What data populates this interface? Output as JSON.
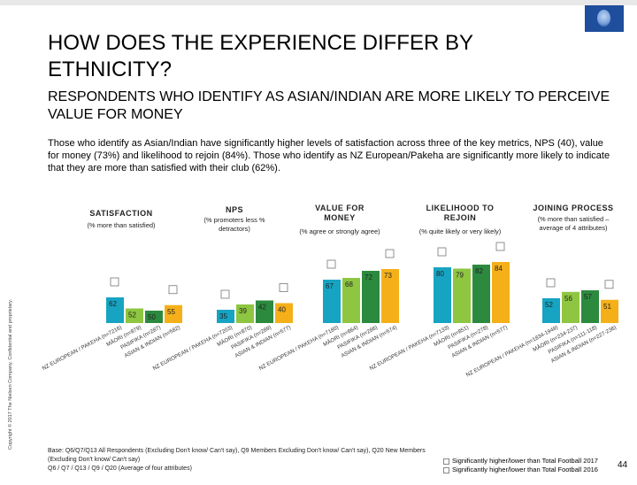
{
  "title": "HOW DOES THE EXPERIENCE DIFFER BY ETHNICITY?",
  "subtitle": "RESPONDENTS WHO IDENTIFY AS ASIAN/INDIAN ARE MORE LIKELY TO PERCEIVE VALUE FOR MONEY",
  "body": "Those who identify as Asian/Indian have significantly higher levels of satisfaction across three of the key metrics, NPS (40), value for money (73%) and likelihood to rejoin (84%). Those who identify as NZ European/Pakeha are significantly more likely to indicate that they are more than satisfied with their club (62%).",
  "copyright": "Copyright © 2017 The Nielsen Company. Confidential and proprietary.",
  "footnote_lines": [
    "Base: Q6/Q7/Q13 All Respondents (Excluding Don't know/ Can't say), Q9 Members Excluding Don't know/ Can't say), Q20 New Members",
    "(Excluding Don't know/ Can't say)",
    "Q6 / Q7 / Q13 / Q9 / Q20 (Average of four attributes)"
  ],
  "legend": {
    "higher_2017": "Significantly higher/lower than Total Football 2017",
    "higher_2016": "Significantly higher/lower than Total Football 2016"
  },
  "page_number": "44",
  "colors": {
    "nz_european": "#16a4c2",
    "maori": "#8ec641",
    "pasifika": "#2c8a3e",
    "asian_indian": "#f5b019",
    "logo": "#1f4e9d"
  },
  "chart_data": {
    "type": "bar",
    "series": [
      {
        "name": "NZ European / Pakeha",
        "key": "nz_european"
      },
      {
        "name": "Māori",
        "key": "maori"
      },
      {
        "name": "Pasifika",
        "key": "pasifika"
      },
      {
        "name": "Asian & Indian",
        "key": "asian_indian"
      }
    ],
    "groups": [
      {
        "title_lines": [
          "SATISFACTION"
        ],
        "subtitle_lines": [
          "(% more than satisfied)"
        ],
        "values": [
          62,
          52,
          50,
          55
        ],
        "labels": [
          "NZ EUROPEAN / PAKEHA (n=7216)",
          "MĀORI (n=879)",
          "PASIFIKA (n=287)",
          "ASIAN & INDIAN (n=582)"
        ]
      },
      {
        "title_lines": [
          "NPS"
        ],
        "subtitle_lines": [
          "(% promoters less %",
          "detractors)"
        ],
        "values": [
          35,
          39,
          42,
          40
        ],
        "labels": [
          "NZ EUROPEAN / PAKEHA (n=7203)",
          "MĀORI (n=870)",
          "PASIFIKA (n=289)",
          "ASIAN & INDIAN (n=577)"
        ]
      },
      {
        "title_lines": [
          "VALUE FOR",
          "MONEY"
        ],
        "subtitle_lines": [
          "(% agree or strongly agree)"
        ],
        "values": [
          67,
          68,
          72,
          73
        ],
        "labels": [
          "NZ EUROPEAN / PAKEHA (n=7180)",
          "MĀORI (n=864)",
          "PASIFIKA (n=286)",
          "ASIAN & INDIAN (n=574)"
        ]
      },
      {
        "title_lines": [
          "LIKELIHOOD TO",
          "REJOIN"
        ],
        "subtitle_lines": [
          "(% quite likely or very likely)"
        ],
        "values": [
          80,
          79,
          82,
          84
        ],
        "labels": [
          "NZ EUROPEAN / PAKEHA (n=7133)",
          "MĀORI (n=851)",
          "PASIFIKA (n=278)",
          "ASIAN & INDIAN (n=577)"
        ]
      },
      {
        "title_lines": [
          "JOINING PROCESS"
        ],
        "subtitle_lines": [
          "(% more than satisfied –",
          "average of 4 attributes)"
        ],
        "values": [
          52,
          56,
          57,
          51
        ],
        "labels": [
          "NZ EUROPEAN / PAKEHA (n=1834-1949)",
          "MĀORI (n=234-237)",
          "PASIFIKA (n=111-118)",
          "ASIAN & INDIAN (n=227-236)"
        ]
      }
    ]
  }
}
